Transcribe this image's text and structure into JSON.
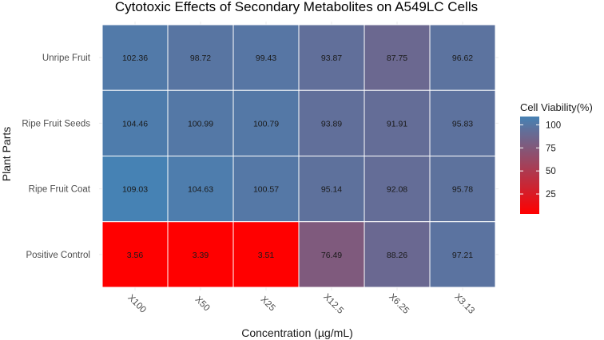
{
  "chart_data": {
    "type": "heatmap",
    "title": "Cytotoxic Effects of Secondary Metabolites on A549LC Cells",
    "xlabel": "Concentration (µg/mL)",
    "ylabel": "Plant Parts",
    "x_categories": [
      "X100",
      "X50",
      "X25",
      "X12.5",
      "X6.25",
      "X3.13"
    ],
    "y_categories": [
      "Unripe Fruit",
      "Ripe Fruit Seeds",
      "Ripe Fruit Coat",
      "Positive Control"
    ],
    "values": [
      [
        102.36,
        98.72,
        99.43,
        93.87,
        87.75,
        96.62
      ],
      [
        104.46,
        100.99,
        100.79,
        93.89,
        91.91,
        95.83
      ],
      [
        109.03,
        104.63,
        100.57,
        95.14,
        92.08,
        95.78
      ],
      [
        3.56,
        3.39,
        3.51,
        76.49,
        88.26,
        97.21
      ]
    ],
    "cell_labels": [
      [
        "102.36",
        "98.72",
        "99.43",
        "93.87",
        "87.75",
        "96.62"
      ],
      [
        "104.46",
        "100.99",
        "100.79",
        "93.89",
        "91.91",
        "95.83"
      ],
      [
        "109.03",
        "104.63",
        "100.57",
        "95.14",
        "92.08",
        "95.78"
      ],
      [
        "3.56",
        "3.39",
        "3.51",
        "76.49",
        "88.26",
        "97.21"
      ]
    ],
    "legend": {
      "title": "Cell Viability(%)",
      "ticks": [
        25,
        50,
        75,
        100
      ],
      "tick_labels": [
        "25",
        "50",
        "75",
        "100"
      ],
      "range": [
        3.39,
        109.03
      ],
      "color_low": "#ff0000",
      "color_high": "#4682b4"
    }
  }
}
